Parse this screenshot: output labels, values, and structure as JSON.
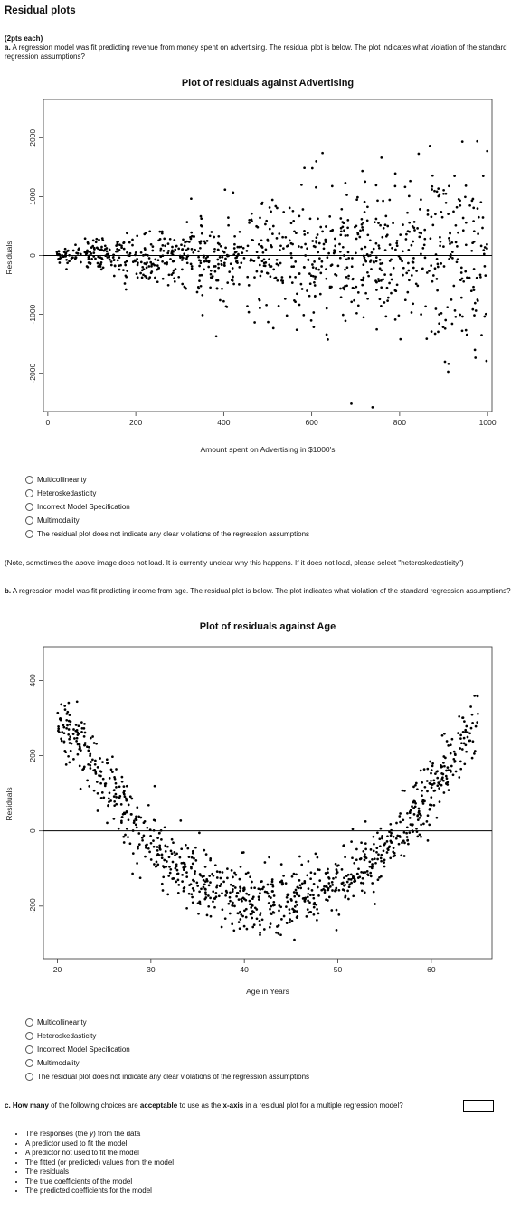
{
  "page_title": "Residual plots",
  "points_note": "(2pts each)",
  "question_a": {
    "label": "a.",
    "text": "A regression model was fit predicting revenue from money spent on advertising.  The residual plot is below.  The plot indicates what violation of the standard regression assumptions?",
    "options": [
      "Multicollinearity",
      "Heteroskedasticity",
      "Incorrect Model Specification",
      "Multimodality",
      "The residual plot does not indicate any clear violations of the regression assumptions"
    ]
  },
  "note": "(Note, sometimes the above image does not load.  It is currently unclear why this happens.  If it does not load, please select \"heteroskedasticity\")",
  "question_b": {
    "label": "b.",
    "text": "A regression model was fit predicting income from age.  The residual plot is below.  The plot indicates what violation of the standard regression assumptions?",
    "options": [
      "Multicollinearity",
      "Heteroskedasticity",
      "Incorrect Model Specification",
      "Multimodality",
      "The residual plot does not indicate any clear violations of the regression assumptions"
    ]
  },
  "question_c": {
    "label": "c.",
    "pre": "How many",
    "mid1": " of the following choices are ",
    "acceptable": "acceptable",
    "mid2": " to use as the ",
    "xaxis": "x-axis",
    "post": " in a residual plot for a multiple regression model?",
    "choices_pre_y": "The responses (the ",
    "choices_y": "y",
    "choices_post_y": ") from the data",
    "choices": [
      "A predictor used to fit the model",
      "A predictor not used to fit the model",
      "The fitted (or predicted) values from the model",
      "The residuals",
      "The true coefficients of the model",
      "The predicted coefficients for the model"
    ]
  },
  "chart_data": [
    {
      "type": "scatter",
      "title": "Plot of residuals against Advertising",
      "xlabel": "Amount spent on Advertising in $1000's",
      "ylabel": "Residuals",
      "xlim": [
        -10,
        1010
      ],
      "ylim": [
        -2650,
        2650
      ],
      "xticks": [
        0,
        200,
        400,
        600,
        800,
        1000
      ],
      "yticks": [
        -2000,
        -1000,
        0,
        1000,
        2000
      ],
      "hline": 0,
      "pattern": "fan-shaped spread increasing with x (approximately 1000 points)",
      "n_points": 1000,
      "x_range": [
        15,
        1000
      ],
      "residual_spread_at_x0": 50,
      "residual_spread_at_x1000": 1500
    },
    {
      "type": "scatter",
      "title": "Plot of residuals against Age",
      "xlabel": "Age in Years",
      "ylabel": "Residuals",
      "xlim": [
        18.5,
        66.5
      ],
      "ylim": [
        -340,
        490
      ],
      "xticks": [
        20,
        30,
        40,
        50,
        60
      ],
      "yticks": [
        -200,
        0,
        200,
        400
      ],
      "hline": 0,
      "pattern": "U-shaped (quadratic) curve",
      "n_points": 1000,
      "x_range": [
        20,
        65
      ],
      "curve_min_at": [
        43,
        -190
      ],
      "curve_at_x20": 330,
      "curve_at_x65": 300,
      "residual_spread": 45
    }
  ]
}
